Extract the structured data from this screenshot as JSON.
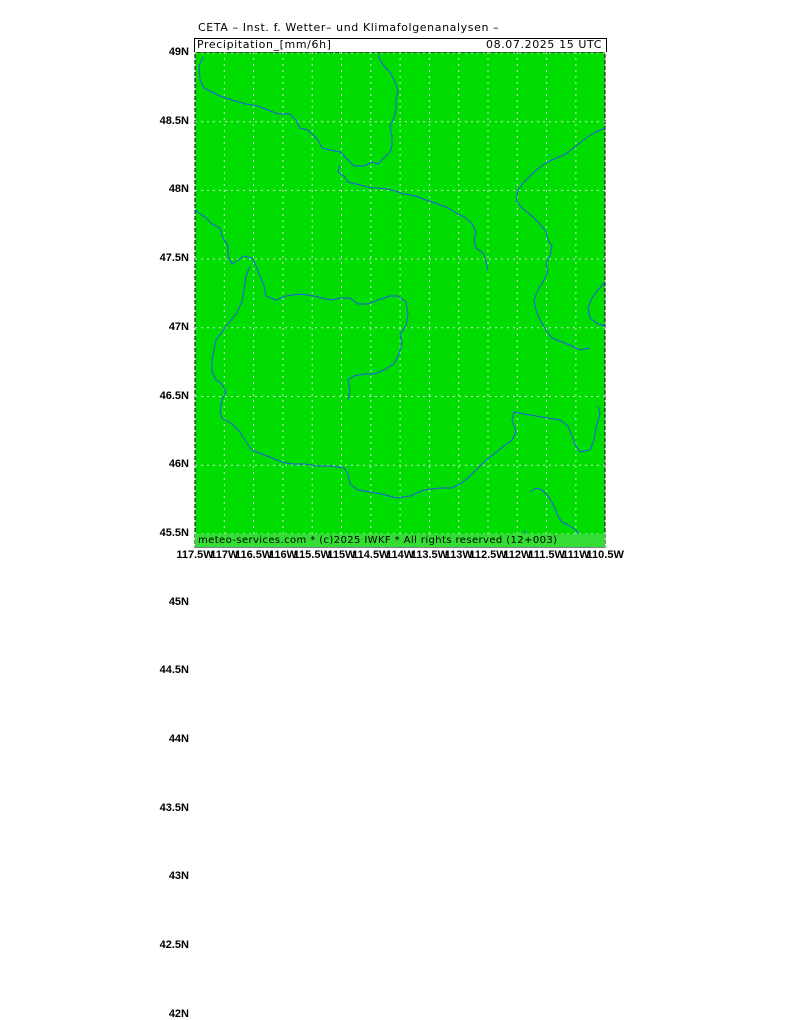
{
  "header": {
    "title": "CETA – Inst. f. Wetter– und Klimafolgenanalysen –",
    "field": "Precipitation_[mm/6h]",
    "valid_time": "08.07.2025  15 UTC"
  },
  "footer": {
    "credit": "meteo-services.com * (c)2025 IWKF * All rights reserved (12+003)"
  },
  "map": {
    "fill_color": "#00dd00",
    "border_color": "#2255ee",
    "grid_color": "#dddddd",
    "lat_labels": [
      "49N",
      "48.5N",
      "48N",
      "47.5N",
      "47N",
      "46.5N",
      "46N",
      "45.5N",
      "45N",
      "44.5N",
      "44N",
      "43.5N",
      "43N",
      "42.5N",
      "42N"
    ],
    "lon_labels": [
      "117.5W",
      "117W",
      "116.5W",
      "116W",
      "115.5W",
      "115W",
      "114.5W",
      "114W",
      "113.5W",
      "113W",
      "112.5W",
      "112W",
      "111.5W",
      "111W",
      "110.5W"
    ]
  }
}
